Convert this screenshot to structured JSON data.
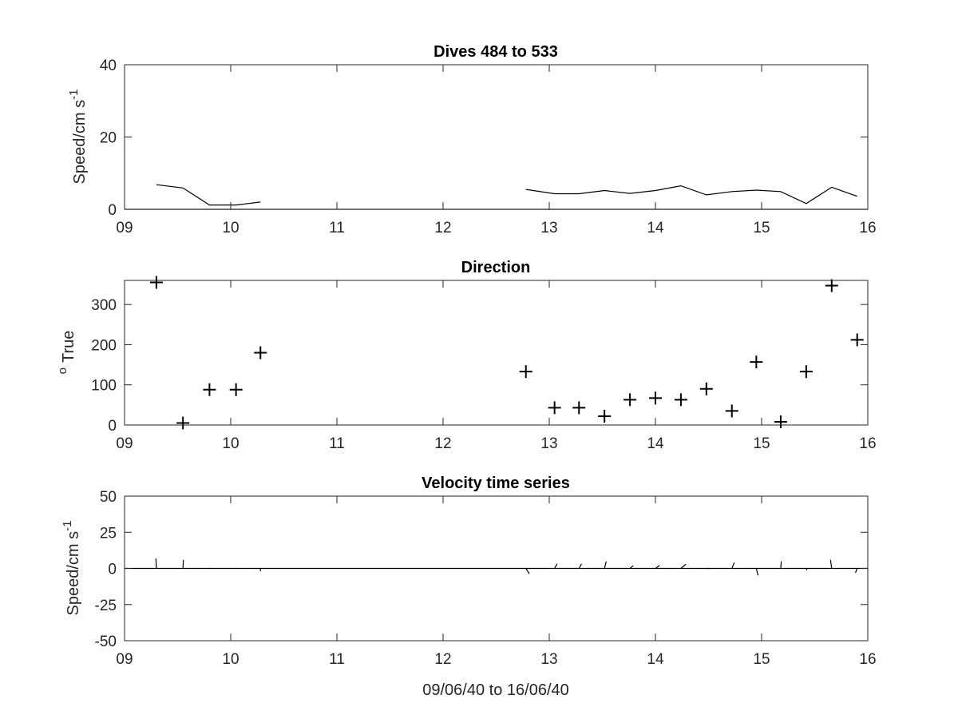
{
  "chart_data": [
    {
      "type": "line",
      "title": "Dives 484 to 533",
      "ylabel": "Speed/cm s",
      "ylabel_sup": "-1",
      "xlim": [
        9,
        16
      ],
      "ylim": [
        0,
        40
      ],
      "xticks": [
        "09",
        "10",
        "11",
        "12",
        "13",
        "14",
        "15",
        "16"
      ],
      "yticks": [
        "0",
        "20",
        "40"
      ],
      "segments": [
        [
          {
            "x": 9.3,
            "y": 6.8
          },
          {
            "x": 9.55,
            "y": 5.9
          },
          {
            "x": 9.8,
            "y": 1.2
          },
          {
            "x": 10.05,
            "y": 1.2
          },
          {
            "x": 10.28,
            "y": 2.0
          }
        ],
        [
          {
            "x": 12.78,
            "y": 5.5
          },
          {
            "x": 13.05,
            "y": 4.3
          },
          {
            "x": 13.28,
            "y": 4.3
          },
          {
            "x": 13.52,
            "y": 5.2
          },
          {
            "x": 13.76,
            "y": 4.4
          },
          {
            "x": 14.0,
            "y": 5.2
          },
          {
            "x": 14.24,
            "y": 6.5
          },
          {
            "x": 14.48,
            "y": 4.0
          },
          {
            "x": 14.72,
            "y": 4.9
          },
          {
            "x": 14.95,
            "y": 5.3
          },
          {
            "x": 15.18,
            "y": 4.9
          },
          {
            "x": 15.42,
            "y": 1.6
          },
          {
            "x": 15.66,
            "y": 6.1
          },
          {
            "x": 15.9,
            "y": 3.6
          }
        ]
      ]
    },
    {
      "type": "scatter",
      "title": "Direction",
      "ylabel": "True",
      "ylabel_sup": "o",
      "xlim": [
        9,
        16
      ],
      "ylim": [
        0,
        360
      ],
      "xticks": [
        "09",
        "10",
        "11",
        "12",
        "13",
        "14",
        "15",
        "16"
      ],
      "yticks": [
        "0",
        "100",
        "200",
        "300"
      ],
      "points": [
        {
          "x": 9.3,
          "y": 355
        },
        {
          "x": 9.55,
          "y": 5
        },
        {
          "x": 9.8,
          "y": 88
        },
        {
          "x": 10.05,
          "y": 88
        },
        {
          "x": 10.28,
          "y": 180
        },
        {
          "x": 12.78,
          "y": 133
        },
        {
          "x": 13.05,
          "y": 43
        },
        {
          "x": 13.28,
          "y": 43
        },
        {
          "x": 13.52,
          "y": 22
        },
        {
          "x": 13.76,
          "y": 63
        },
        {
          "x": 14.0,
          "y": 67
        },
        {
          "x": 14.24,
          "y": 63
        },
        {
          "x": 14.48,
          "y": 90
        },
        {
          "x": 14.72,
          "y": 35
        },
        {
          "x": 14.95,
          "y": 157
        },
        {
          "x": 15.18,
          "y": 8
        },
        {
          "x": 15.42,
          "y": 133
        },
        {
          "x": 15.66,
          "y": 347
        },
        {
          "x": 15.9,
          "y": 212
        }
      ]
    },
    {
      "type": "line",
      "title": "Velocity time series",
      "ylabel": "Speed/cm s",
      "ylabel_sup": "-1",
      "xlabel": "09/06/40 to 16/06/40",
      "xlim": [
        9,
        16
      ],
      "ylim": [
        -50,
        50
      ],
      "xticks": [
        "09",
        "10",
        "11",
        "12",
        "13",
        "14",
        "15",
        "16"
      ],
      "yticks": [
        "50",
        "25",
        "0",
        "-25",
        "-50"
      ],
      "sticks": [
        {
          "x": 9.3,
          "speed": 6.8,
          "direction": 355
        },
        {
          "x": 9.55,
          "speed": 5.9,
          "direction": 5
        },
        {
          "x": 9.8,
          "speed": 1.2,
          "direction": 88
        },
        {
          "x": 10.05,
          "speed": 1.2,
          "direction": 88
        },
        {
          "x": 10.28,
          "speed": 2.0,
          "direction": 180
        },
        {
          "x": 12.78,
          "speed": 5.5,
          "direction": 133
        },
        {
          "x": 13.05,
          "speed": 4.3,
          "direction": 43
        },
        {
          "x": 13.28,
          "speed": 4.3,
          "direction": 43
        },
        {
          "x": 13.52,
          "speed": 5.2,
          "direction": 22
        },
        {
          "x": 13.76,
          "speed": 4.4,
          "direction": 63
        },
        {
          "x": 14.0,
          "speed": 5.2,
          "direction": 67
        },
        {
          "x": 14.24,
          "speed": 6.5,
          "direction": 63
        },
        {
          "x": 14.48,
          "speed": 4.0,
          "direction": 90
        },
        {
          "x": 14.72,
          "speed": 4.9,
          "direction": 35
        },
        {
          "x": 14.95,
          "speed": 5.3,
          "direction": 157
        },
        {
          "x": 15.18,
          "speed": 4.9,
          "direction": 8
        },
        {
          "x": 15.42,
          "speed": 1.6,
          "direction": 133
        },
        {
          "x": 15.66,
          "speed": 6.1,
          "direction": 347
        },
        {
          "x": 15.9,
          "speed": 3.6,
          "direction": 212
        }
      ]
    }
  ]
}
